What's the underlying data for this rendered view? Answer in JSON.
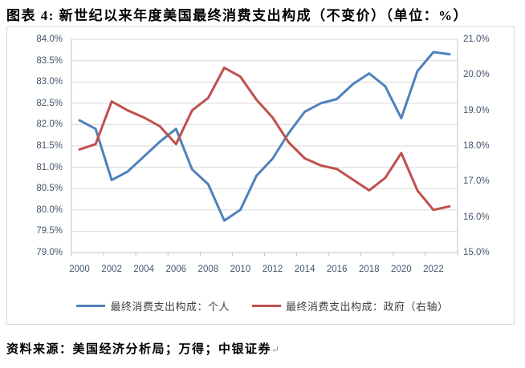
{
  "title": "图表 4: 新世纪以来年度美国最终消费支出构成（不变价）（单位：%）",
  "source": {
    "label": "资料来源：美国经济分析局；万得；中银证券",
    "paragraph_mark": "↵"
  },
  "legend": [
    {
      "label": "最终消费支出构成：个人",
      "color": "#4F81BD",
      "axis": "left"
    },
    {
      "label": "最终消费支出构成：政府（右轴）",
      "color": "#C0504D",
      "axis": "right"
    }
  ],
  "colors": {
    "personal_line": "#4F81BD",
    "government_line": "#C0504D",
    "gridline": "#D9D9D9",
    "axis_line": "#BFBFBF",
    "axis_text": "#44546A",
    "frame_border": "#D9D9D9"
  },
  "chart_data": {
    "type": "line",
    "title": "新世纪以来年度美国最终消费支出构成（不变价）（单位：%）",
    "x": [
      2000,
      2001,
      2002,
      2003,
      2004,
      2005,
      2006,
      2007,
      2008,
      2009,
      2010,
      2011,
      2012,
      2013,
      2014,
      2015,
      2016,
      2017,
      2018,
      2019,
      2020,
      2021,
      2022,
      2023
    ],
    "x_tick_labels": [
      "2000",
      "2002",
      "2004",
      "2006",
      "2008",
      "2010",
      "2012",
      "2014",
      "2016",
      "2018",
      "2020",
      "2022"
    ],
    "series": [
      {
        "name": "最终消费支出构成：个人",
        "axis": "left",
        "color": "#4F81BD",
        "values": [
          82.1,
          81.9,
          80.7,
          80.9,
          81.25,
          81.6,
          81.9,
          80.95,
          80.6,
          79.75,
          80.0,
          80.8,
          81.2,
          81.8,
          82.3,
          82.5,
          82.6,
          82.95,
          83.2,
          82.9,
          82.15,
          83.25,
          83.7,
          83.65
        ]
      },
      {
        "name": "最终消费支出构成：政府（右轴）",
        "axis": "right",
        "color": "#C0504D",
        "values": [
          17.9,
          18.05,
          19.25,
          19.0,
          18.8,
          18.55,
          18.05,
          19.0,
          19.35,
          20.2,
          19.95,
          19.3,
          18.8,
          18.1,
          17.65,
          17.45,
          17.35,
          17.05,
          16.75,
          17.1,
          17.8,
          16.75,
          16.2,
          16.3
        ]
      }
    ],
    "left_axis": {
      "min": 79.0,
      "max": 84.0,
      "step": 0.5,
      "tick_labels": [
        "79.0%",
        "79.5%",
        "80.0%",
        "80.5%",
        "81.0%",
        "81.5%",
        "82.0%",
        "82.5%",
        "83.0%",
        "83.5%",
        "84.0%"
      ]
    },
    "right_axis": {
      "min": 15.0,
      "max": 21.0,
      "step": 1.0,
      "tick_labels": [
        "15.0%",
        "16.0%",
        "17.0%",
        "18.0%",
        "19.0%",
        "20.0%",
        "21.0%"
      ]
    },
    "grid": true,
    "legend_position": "bottom"
  }
}
